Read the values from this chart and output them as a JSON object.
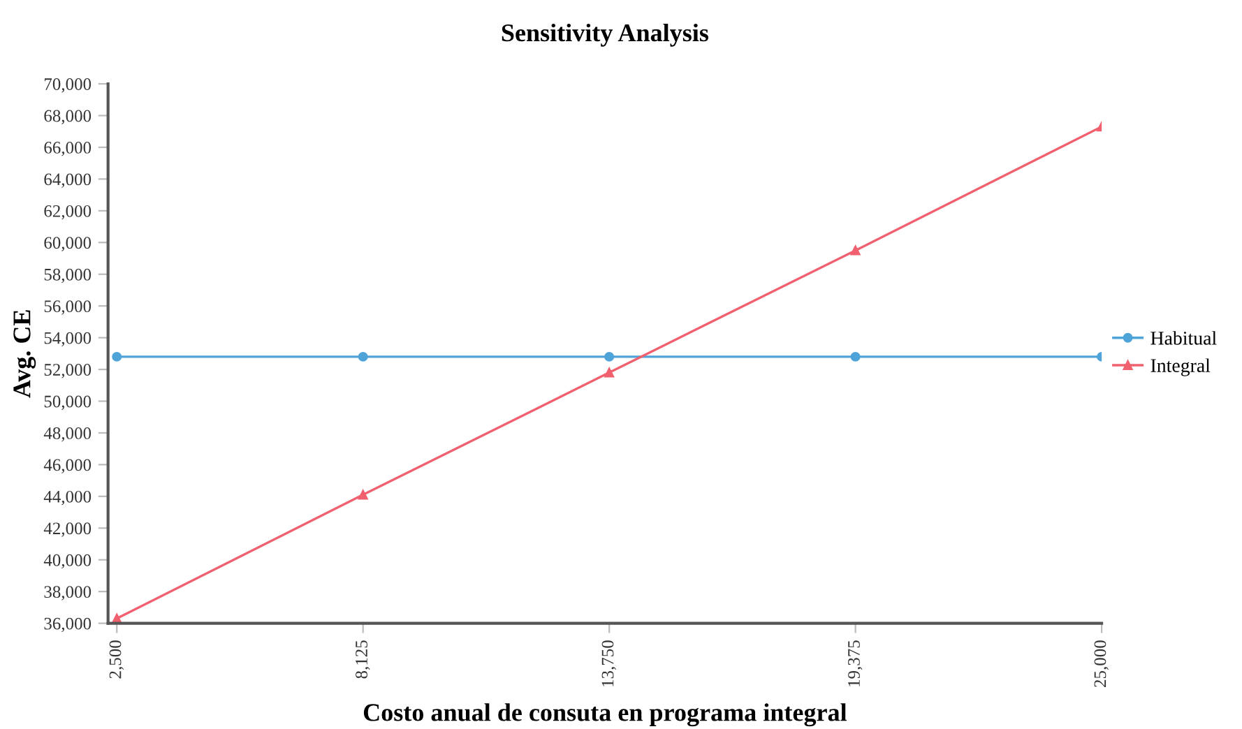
{
  "chart_data": {
    "type": "line",
    "title": "Sensitivity Analysis",
    "xlabel": "Costo anual de consuta en programa integral",
    "ylabel": "Avg. CE",
    "x": [
      2500,
      8125,
      13750,
      19375,
      25000
    ],
    "series": [
      {
        "name": "Habitual",
        "color": "#4ea3d8",
        "marker": "circle",
        "values": [
          52800,
          52800,
          52800,
          52800,
          52800
        ]
      },
      {
        "name": "Integral",
        "color": "#f0606e",
        "marker": "triangle",
        "values": [
          36300,
          44100,
          51800,
          59500,
          67300
        ]
      }
    ],
    "xlim": [
      2300,
      25000
    ],
    "xticks": [
      {
        "value": 2500,
        "label": "2,500"
      },
      {
        "value": 8125,
        "label": "8,125"
      },
      {
        "value": 13750,
        "label": "13,750"
      },
      {
        "value": 19375,
        "label": "19,375"
      },
      {
        "value": 25000,
        "label": "25,000"
      }
    ],
    "ylim": [
      36000,
      70000
    ],
    "yticks": [
      {
        "value": 36000,
        "label": "36,000"
      },
      {
        "value": 38000,
        "label": "38,000"
      },
      {
        "value": 40000,
        "label": "40,000"
      },
      {
        "value": 42000,
        "label": "42,000"
      },
      {
        "value": 44000,
        "label": "44,000"
      },
      {
        "value": 46000,
        "label": "46,000"
      },
      {
        "value": 48000,
        "label": "48,000"
      },
      {
        "value": 50000,
        "label": "50,000"
      },
      {
        "value": 52000,
        "label": "52,000"
      },
      {
        "value": 54000,
        "label": "54,000"
      },
      {
        "value": 56000,
        "label": "56,000"
      },
      {
        "value": 58000,
        "label": "58,000"
      },
      {
        "value": 60000,
        "label": "60,000"
      },
      {
        "value": 62000,
        "label": "62,000"
      },
      {
        "value": 64000,
        "label": "64,000"
      },
      {
        "value": 66000,
        "label": "66,000"
      },
      {
        "value": 68000,
        "label": "68,000"
      },
      {
        "value": 70000,
        "label": "70,000"
      }
    ],
    "grid": false,
    "legend": "right",
    "line_style": "solid"
  }
}
